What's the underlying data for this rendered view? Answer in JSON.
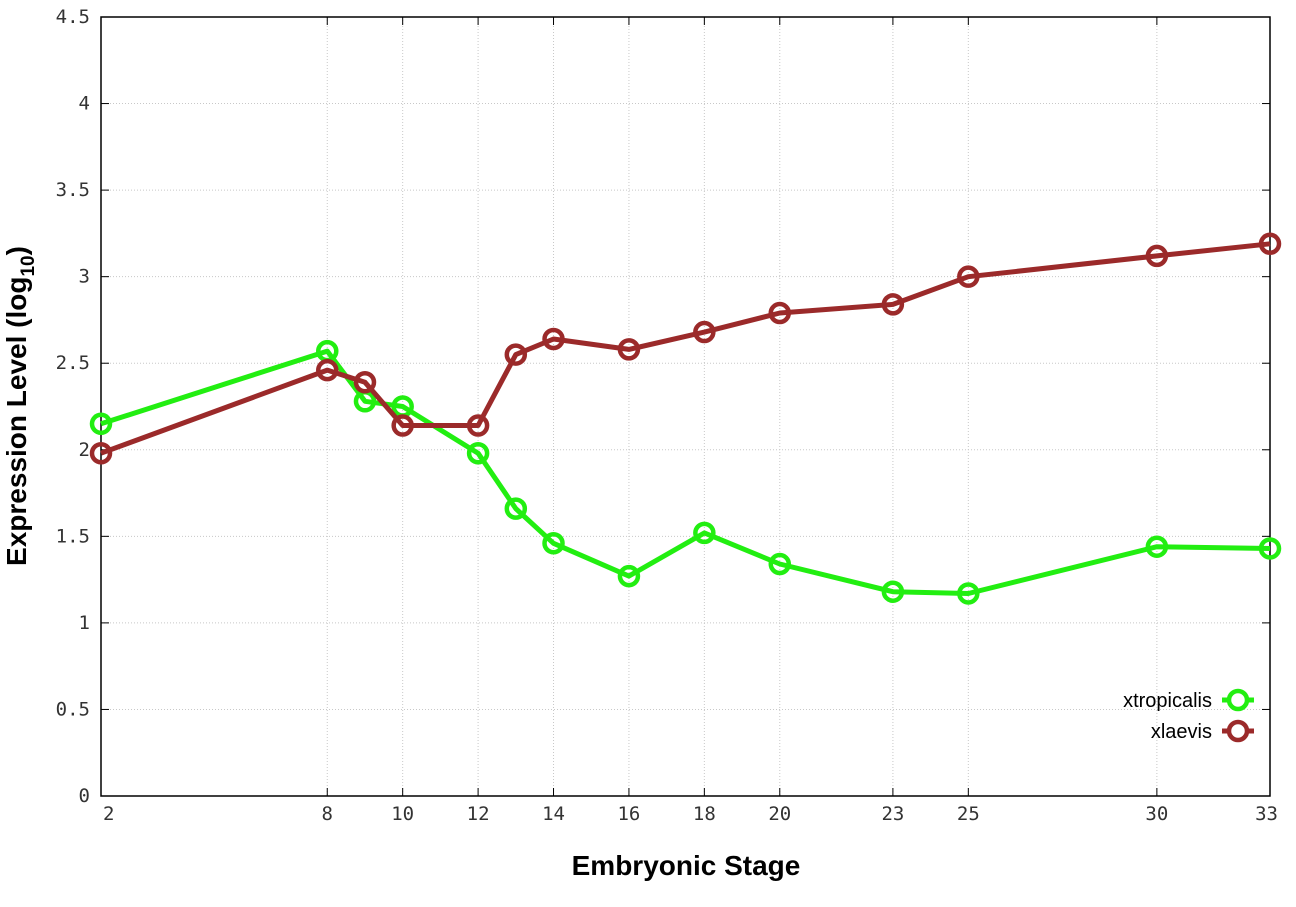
{
  "chart_data": {
    "type": "line",
    "xlabel": "Embryonic Stage",
    "ylabel_main": "Expression Level (log",
    "ylabel_sub": "10",
    "ylabel_close": ")",
    "xlim": [
      2,
      33
    ],
    "ylim": [
      0,
      4.5
    ],
    "x_ticks": [
      2,
      8,
      10,
      12,
      14,
      16,
      18,
      20,
      23,
      25,
      30,
      33
    ],
    "y_ticks": [
      0,
      0.5,
      1,
      1.5,
      2,
      2.5,
      3,
      3.5,
      4,
      4.5
    ],
    "y_tick_labels": [
      "0",
      "0.5",
      "1",
      "1.5",
      "2",
      "2.5",
      "3",
      "3.5",
      "4",
      "4.5"
    ],
    "grid": true,
    "legend_position": "bottom-right",
    "series": [
      {
        "name": "xtropicalis",
        "color": "#22ee11",
        "x": [
          2,
          8,
          9,
          10,
          12,
          13,
          14,
          16,
          18,
          20,
          23,
          25,
          30,
          33
        ],
        "y": [
          2.15,
          2.57,
          2.28,
          2.25,
          1.98,
          1.66,
          1.46,
          1.27,
          1.52,
          1.34,
          1.18,
          1.17,
          1.44,
          1.43
        ]
      },
      {
        "name": "xlaevis",
        "color": "#9b2a2a",
        "x": [
          2,
          8,
          9,
          10,
          12,
          13,
          14,
          16,
          18,
          20,
          23,
          25,
          30,
          33
        ],
        "y": [
          1.98,
          2.46,
          2.39,
          2.14,
          2.14,
          2.55,
          2.64,
          2.58,
          2.68,
          2.79,
          2.84,
          3.0,
          3.12,
          3.19
        ]
      }
    ]
  }
}
